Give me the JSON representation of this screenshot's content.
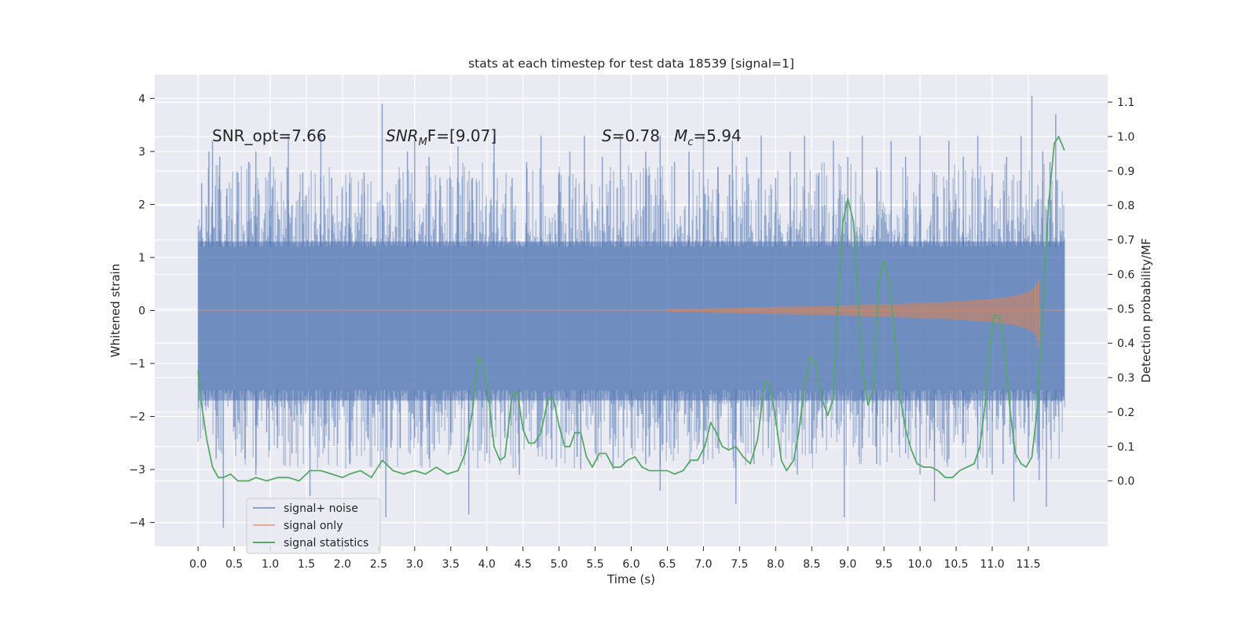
{
  "chart_data": {
    "type": "line",
    "title": "stats at each timestep for test data 18539 [signal=1]",
    "xlabel": "Time (s)",
    "ylabel_left": "Whitened strain",
    "ylabel_right": "Detection probability/MF",
    "xlim": [
      -0.6,
      12.6
    ],
    "ylim_left": [
      -4.45,
      4.45
    ],
    "ylim_right": [
      -0.19,
      1.18
    ],
    "grid": true,
    "x_ticks": [
      "0.0",
      "0.5",
      "1.0",
      "1.5",
      "2.0",
      "2.5",
      "3.0",
      "3.5",
      "4.0",
      "4.5",
      "5.0",
      "5.5",
      "6.0",
      "6.5",
      "7.0",
      "7.5",
      "8.0",
      "8.5",
      "9.0",
      "9.5",
      "10.0",
      "10.5",
      "11.0",
      "11.5"
    ],
    "y_ticks_left": [
      "4",
      "3",
      "2",
      "1",
      "0",
      "−1",
      "−2",
      "−3",
      "−4"
    ],
    "y_ticks_right": [
      "1.1",
      "1.0",
      "0.9",
      "0.8",
      "0.7",
      "0.6",
      "0.5",
      "0.4",
      "0.3",
      "0.2",
      "0.1",
      "0.0"
    ],
    "annotations": [
      {
        "text": "SNR_opt=7.66"
      },
      {
        "text": "SNR",
        "sub": "M",
        "tail": "F=[9.07]"
      },
      {
        "text": "S",
        "tail": "=0.78"
      },
      {
        "text": "M",
        "sub": "c",
        "tail": "=5.94"
      }
    ],
    "legend": {
      "position": "lower-left",
      "entries": [
        "signal+ noise",
        "signal only",
        "signal statistics"
      ]
    },
    "series": [
      {
        "name": "signal+ noise",
        "color": "#4c72b0",
        "opacity": 0.5,
        "t_range": [
          0.0,
          12.0
        ],
        "band": {
          "low": -1.7,
          "high": 1.3
        },
        "spikes_up": [
          [
            0.05,
            2.4
          ],
          [
            0.15,
            3.0
          ],
          [
            0.2,
            3.2
          ],
          [
            0.3,
            2.9
          ],
          [
            0.4,
            2.3
          ],
          [
            0.55,
            2.6
          ],
          [
            0.7,
            2.8
          ],
          [
            0.8,
            3.0
          ],
          [
            1.0,
            2.9
          ],
          [
            1.25,
            3.3
          ],
          [
            1.45,
            2.6
          ],
          [
            1.7,
            3.3
          ],
          [
            1.85,
            2.5
          ],
          [
            2.1,
            2.4
          ],
          [
            2.3,
            2.6
          ],
          [
            2.55,
            3.9
          ],
          [
            2.9,
            3.0
          ],
          [
            3.0,
            3.2
          ],
          [
            3.2,
            2.9
          ],
          [
            3.35,
            2.5
          ],
          [
            3.6,
            3.1
          ],
          [
            3.8,
            2.5
          ],
          [
            4.1,
            3.3
          ],
          [
            4.35,
            2.5
          ],
          [
            4.55,
            2.8
          ],
          [
            4.75,
            3.3
          ],
          [
            5.0,
            2.6
          ],
          [
            5.15,
            3.0
          ],
          [
            5.35,
            3.3
          ],
          [
            5.6,
            2.9
          ],
          [
            5.85,
            3.3
          ],
          [
            6.0,
            2.6
          ],
          [
            6.2,
            3.0
          ],
          [
            6.4,
            3.3
          ],
          [
            6.6,
            2.8
          ],
          [
            6.8,
            3.0
          ],
          [
            7.0,
            3.3
          ],
          [
            7.2,
            2.7
          ],
          [
            7.4,
            3.2
          ],
          [
            7.6,
            2.9
          ],
          [
            7.8,
            3.3
          ],
          [
            8.0,
            2.5
          ],
          [
            8.2,
            3.0
          ],
          [
            8.4,
            3.3
          ],
          [
            8.6,
            2.6
          ],
          [
            8.8,
            3.2
          ],
          [
            9.0,
            2.9
          ],
          [
            9.2,
            3.3
          ],
          [
            9.4,
            2.7
          ],
          [
            9.6,
            3.2
          ],
          [
            9.8,
            2.9
          ],
          [
            10.0,
            3.3
          ],
          [
            10.2,
            2.6
          ],
          [
            10.4,
            3.2
          ],
          [
            10.6,
            2.9
          ],
          [
            10.8,
            3.3
          ],
          [
            11.0,
            2.6
          ],
          [
            11.2,
            2.9
          ],
          [
            11.4,
            3.3
          ],
          [
            11.55,
            4.05
          ],
          [
            11.7,
            3.0
          ],
          [
            11.8,
            2.8
          ],
          [
            11.88,
            3.7
          ],
          [
            11.95,
            1.5
          ]
        ],
        "spikes_down": [
          [
            0.1,
            -1.8
          ],
          [
            0.25,
            -2.8
          ],
          [
            0.35,
            -4.1
          ],
          [
            0.5,
            -2.2
          ],
          [
            0.65,
            -2.8
          ],
          [
            0.8,
            -3.1
          ],
          [
            0.95,
            -2.3
          ],
          [
            1.1,
            -2.6
          ],
          [
            1.3,
            -2.7
          ],
          [
            1.55,
            -3.5
          ],
          [
            1.75,
            -2.6
          ],
          [
            1.9,
            -2.2
          ],
          [
            2.1,
            -2.9
          ],
          [
            2.35,
            -2.4
          ],
          [
            2.6,
            -3.9
          ],
          [
            2.8,
            -2.6
          ],
          [
            3.0,
            -2.4
          ],
          [
            3.2,
            -2.8
          ],
          [
            3.5,
            -2.3
          ],
          [
            3.75,
            -3.85
          ],
          [
            4.0,
            -2.7
          ],
          [
            4.25,
            -2.4
          ],
          [
            4.45,
            -3.1
          ],
          [
            4.7,
            -2.6
          ],
          [
            4.9,
            -2.8
          ],
          [
            5.1,
            -2.3
          ],
          [
            5.3,
            -3.0
          ],
          [
            5.5,
            -2.7
          ],
          [
            5.75,
            -3.0
          ],
          [
            6.0,
            -2.6
          ],
          [
            6.2,
            -2.9
          ],
          [
            6.4,
            -3.4
          ],
          [
            6.6,
            -2.6
          ],
          [
            6.8,
            -2.3
          ],
          [
            7.0,
            -2.9
          ],
          [
            7.2,
            -2.6
          ],
          [
            7.45,
            -3.65
          ],
          [
            7.7,
            -2.9
          ],
          [
            7.9,
            -2.6
          ],
          [
            8.1,
            -2.3
          ],
          [
            8.3,
            -3.1
          ],
          [
            8.5,
            -2.7
          ],
          [
            8.65,
            -2.4
          ],
          [
            8.95,
            -3.9
          ],
          [
            9.2,
            -2.6
          ],
          [
            9.4,
            -2.9
          ],
          [
            9.6,
            -2.3
          ],
          [
            9.8,
            -2.7
          ],
          [
            10.0,
            -3.1
          ],
          [
            10.2,
            -3.6
          ],
          [
            10.4,
            -2.8
          ],
          [
            10.6,
            -2.5
          ],
          [
            10.8,
            -3.0
          ],
          [
            11.0,
            -3.1
          ],
          [
            11.15,
            -2.9
          ],
          [
            11.3,
            -3.6
          ],
          [
            11.5,
            -2.8
          ],
          [
            11.65,
            -3.2
          ],
          [
            11.75,
            -3.7
          ],
          [
            11.88,
            -2.0
          ],
          [
            11.95,
            -1.6
          ]
        ]
      },
      {
        "name": "signal only",
        "color": "#dd8452",
        "opacity": 0.5,
        "envelope": [
          [
            6.5,
            0.02
          ],
          [
            7.0,
            0.04
          ],
          [
            7.5,
            0.05
          ],
          [
            8.0,
            0.07
          ],
          [
            8.5,
            0.08
          ],
          [
            9.0,
            0.1
          ],
          [
            9.5,
            0.12
          ],
          [
            10.0,
            0.14
          ],
          [
            10.5,
            0.17
          ],
          [
            11.0,
            0.22
          ],
          [
            11.3,
            0.27
          ],
          [
            11.5,
            0.35
          ],
          [
            11.6,
            0.45
          ],
          [
            11.65,
            0.6
          ]
        ],
        "envelope_end": 11.65
      },
      {
        "name": "signal statistics",
        "color": "#55a868",
        "points": [
          [
            0.0,
            0.32
          ],
          [
            0.05,
            0.22
          ],
          [
            0.12,
            0.12
          ],
          [
            0.2,
            0.04
          ],
          [
            0.28,
            0.01
          ],
          [
            0.35,
            0.01
          ],
          [
            0.45,
            0.02
          ],
          [
            0.55,
            0.0
          ],
          [
            0.7,
            0.0
          ],
          [
            0.8,
            0.01
          ],
          [
            0.95,
            0.0
          ],
          [
            1.1,
            0.01
          ],
          [
            1.25,
            0.01
          ],
          [
            1.4,
            0.0
          ],
          [
            1.55,
            0.03
          ],
          [
            1.7,
            0.03
          ],
          [
            1.85,
            0.02
          ],
          [
            2.0,
            0.01
          ],
          [
            2.1,
            0.02
          ],
          [
            2.25,
            0.03
          ],
          [
            2.4,
            0.01
          ],
          [
            2.55,
            0.06
          ],
          [
            2.7,
            0.03
          ],
          [
            2.85,
            0.02
          ],
          [
            3.0,
            0.03
          ],
          [
            3.15,
            0.02
          ],
          [
            3.3,
            0.04
          ],
          [
            3.45,
            0.02
          ],
          [
            3.6,
            0.03
          ],
          [
            3.7,
            0.08
          ],
          [
            3.8,
            0.2
          ],
          [
            3.88,
            0.36
          ],
          [
            3.95,
            0.34
          ],
          [
            4.02,
            0.25
          ],
          [
            4.1,
            0.1
          ],
          [
            4.18,
            0.06
          ],
          [
            4.25,
            0.07
          ],
          [
            4.35,
            0.25
          ],
          [
            4.42,
            0.26
          ],
          [
            4.5,
            0.15
          ],
          [
            4.58,
            0.11
          ],
          [
            4.66,
            0.11
          ],
          [
            4.75,
            0.14
          ],
          [
            4.85,
            0.24
          ],
          [
            4.92,
            0.24
          ],
          [
            5.0,
            0.16
          ],
          [
            5.08,
            0.1
          ],
          [
            5.15,
            0.1
          ],
          [
            5.22,
            0.14
          ],
          [
            5.3,
            0.14
          ],
          [
            5.38,
            0.07
          ],
          [
            5.46,
            0.04
          ],
          [
            5.56,
            0.08
          ],
          [
            5.65,
            0.08
          ],
          [
            5.75,
            0.04
          ],
          [
            5.85,
            0.04
          ],
          [
            5.95,
            0.06
          ],
          [
            6.05,
            0.07
          ],
          [
            6.15,
            0.04
          ],
          [
            6.25,
            0.03
          ],
          [
            6.4,
            0.03
          ],
          [
            6.5,
            0.03
          ],
          [
            6.6,
            0.02
          ],
          [
            6.72,
            0.03
          ],
          [
            6.82,
            0.06
          ],
          [
            6.92,
            0.06
          ],
          [
            7.02,
            0.1
          ],
          [
            7.1,
            0.17
          ],
          [
            7.18,
            0.14
          ],
          [
            7.26,
            0.1
          ],
          [
            7.35,
            0.09
          ],
          [
            7.45,
            0.1
          ],
          [
            7.55,
            0.07
          ],
          [
            7.65,
            0.05
          ],
          [
            7.75,
            0.12
          ],
          [
            7.85,
            0.29
          ],
          [
            7.92,
            0.28
          ],
          [
            8.0,
            0.18
          ],
          [
            8.08,
            0.06
          ],
          [
            8.15,
            0.03
          ],
          [
            8.25,
            0.06
          ],
          [
            8.32,
            0.14
          ],
          [
            8.4,
            0.28
          ],
          [
            8.48,
            0.36
          ],
          [
            8.56,
            0.34
          ],
          [
            8.64,
            0.24
          ],
          [
            8.72,
            0.19
          ],
          [
            8.8,
            0.24
          ],
          [
            8.86,
            0.5
          ],
          [
            8.93,
            0.75
          ],
          [
            9.0,
            0.82
          ],
          [
            9.08,
            0.75
          ],
          [
            9.15,
            0.5
          ],
          [
            9.22,
            0.3
          ],
          [
            9.28,
            0.22
          ],
          [
            9.36,
            0.27
          ],
          [
            9.43,
            0.58
          ],
          [
            9.5,
            0.64
          ],
          [
            9.58,
            0.57
          ],
          [
            9.65,
            0.42
          ],
          [
            9.72,
            0.25
          ],
          [
            9.8,
            0.15
          ],
          [
            9.88,
            0.09
          ],
          [
            9.96,
            0.05
          ],
          [
            10.05,
            0.04
          ],
          [
            10.15,
            0.04
          ],
          [
            10.25,
            0.03
          ],
          [
            10.35,
            0.01
          ],
          [
            10.45,
            0.01
          ],
          [
            10.55,
            0.03
          ],
          [
            10.65,
            0.04
          ],
          [
            10.75,
            0.05
          ],
          [
            10.83,
            0.1
          ],
          [
            10.9,
            0.22
          ],
          [
            10.97,
            0.4
          ],
          [
            11.03,
            0.48
          ],
          [
            11.1,
            0.48
          ],
          [
            11.17,
            0.38
          ],
          [
            11.25,
            0.2
          ],
          [
            11.32,
            0.08
          ],
          [
            11.4,
            0.05
          ],
          [
            11.47,
            0.04
          ],
          [
            11.55,
            0.07
          ],
          [
            11.62,
            0.2
          ],
          [
            11.7,
            0.5
          ],
          [
            11.78,
            0.8
          ],
          [
            11.86,
            0.98
          ],
          [
            11.92,
            1.0
          ],
          [
            12.0,
            0.96
          ]
        ]
      }
    ]
  }
}
